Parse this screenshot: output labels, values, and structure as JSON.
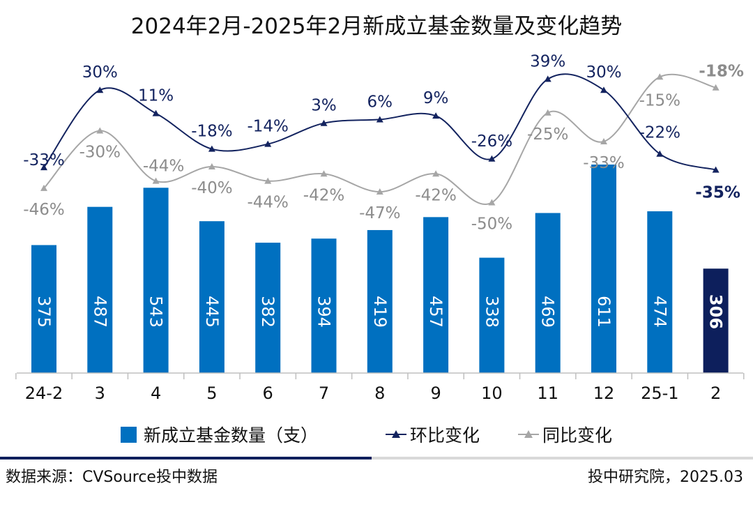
{
  "chart_data": {
    "type": "bar",
    "title": "2024年2月-2025年2月新成立基金数量及变化趋势",
    "categories": [
      "24-2",
      "3",
      "4",
      "5",
      "6",
      "7",
      "8",
      "9",
      "10",
      "11",
      "12",
      "25-1",
      "2"
    ],
    "series": [
      {
        "name": "新成立基金数量（支）",
        "type": "bar",
        "values": [
          375,
          487,
          543,
          445,
          382,
          394,
          419,
          457,
          338,
          469,
          611,
          474,
          306
        ],
        "color": "#0070c0",
        "highlight_last_color": "#0d1f5c"
      },
      {
        "name": "环比变化",
        "type": "line",
        "values": [
          -33,
          30,
          11,
          -18,
          -14,
          3,
          6,
          9,
          -26,
          39,
          30,
          -22,
          -35
        ],
        "labels": [
          "-33%",
          "30%",
          "11%",
          "-18%",
          "-14%",
          "3%",
          "6%",
          "9%",
          "-26%",
          "39%",
          "30%",
          "-22%",
          "-35%"
        ],
        "color": "#13235f"
      },
      {
        "name": "同比变化",
        "type": "line",
        "values": [
          -46,
          -30,
          -44,
          -40,
          -44,
          -42,
          -47,
          -42,
          -50,
          -25,
          -33,
          -15,
          -18
        ],
        "labels": [
          "-46%",
          "-30%",
          "-44%",
          "-40%",
          "-44%",
          "-42%",
          "-47%",
          "-42%",
          "-50%",
          "-25%",
          "-33%",
          "-15%",
          "-18%"
        ],
        "color": "#a6a6a6"
      }
    ],
    "legend_position": "bottom",
    "grid": false
  },
  "footer": {
    "source": "数据来源：CVSource投中数据",
    "publisher": "投中研究院，2025.03"
  }
}
